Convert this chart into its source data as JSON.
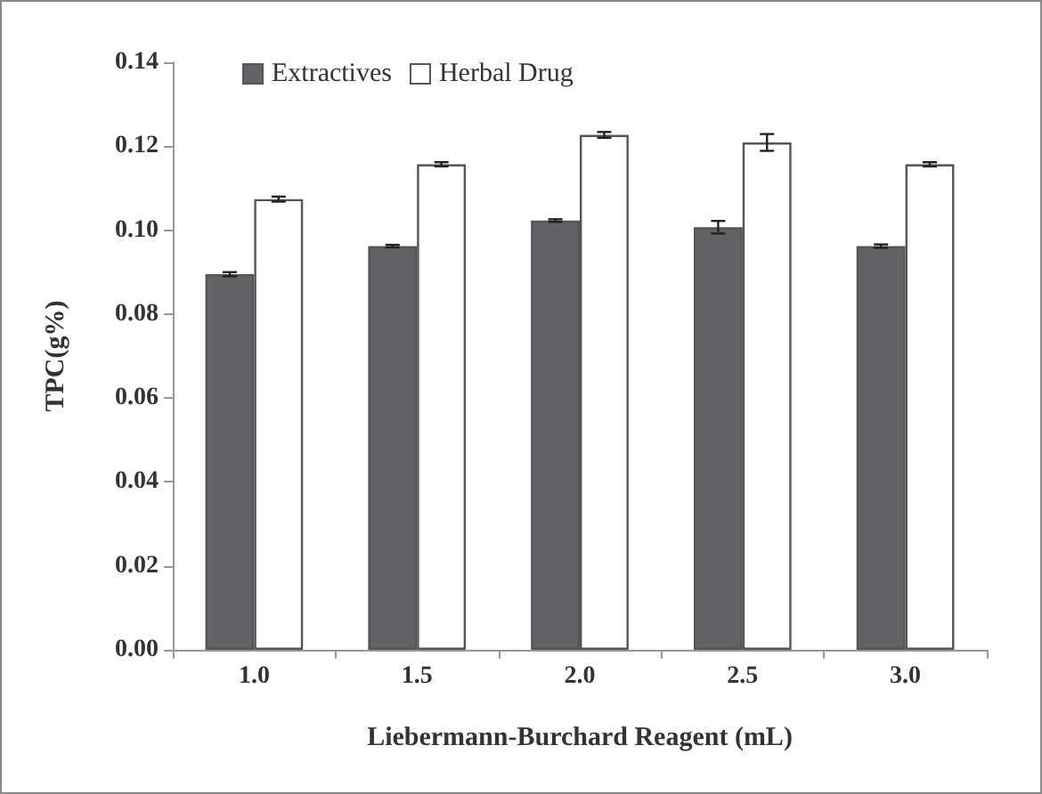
{
  "chart_data": {
    "type": "bar",
    "xlabel": "Liebermann-Burchard Reagent (mL)",
    "ylabel": "TPC(g%)",
    "categories": [
      "1.0",
      "1.5",
      "2.0",
      "2.5",
      "3.0"
    ],
    "series": [
      {
        "name": "Extractives",
        "color": "#626366",
        "values": [
          0.0895,
          0.0962,
          0.1023,
          0.1007,
          0.0962
        ],
        "errors": [
          0.0005,
          0.0003,
          0.0003,
          0.0015,
          0.0004
        ]
      },
      {
        "name": "Herbal Drug",
        "color": "#ffffff",
        "values": [
          0.1074,
          0.1157,
          0.1227,
          0.1209,
          0.1157
        ],
        "errors": [
          0.0006,
          0.0005,
          0.0007,
          0.002,
          0.0005
        ]
      }
    ],
    "ylim": [
      0,
      0.14
    ],
    "yticks": [
      {
        "value": 0,
        "label": "0.00"
      },
      0.02,
      0.04,
      0.06,
      0.08,
      {
        "value": 0.1,
        "label": "0.10"
      },
      0.12,
      0.14
    ],
    "grid": false,
    "legend": "top left"
  }
}
